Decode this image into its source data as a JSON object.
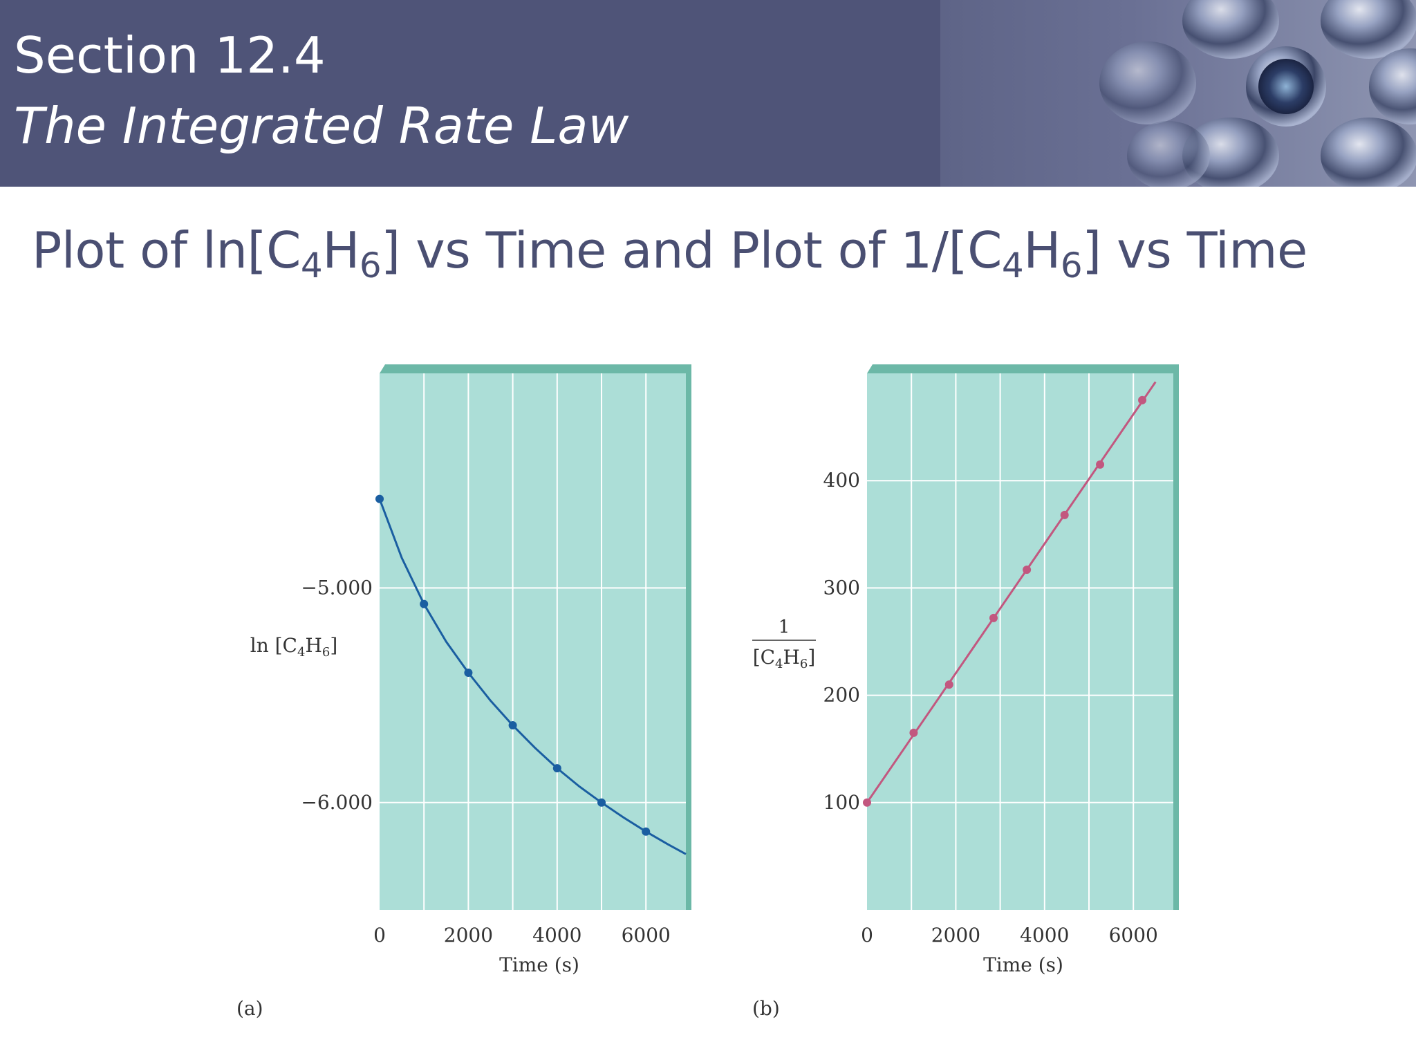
{
  "header": {
    "section_number": "Section 12.4",
    "section_name": "The Integrated Rate Law"
  },
  "slide_title_parts": {
    "p1": "Plot of ln[C",
    "s1": "4",
    "p2": "H",
    "s2": "6",
    "p3": "] vs Time and Plot of 1/[C",
    "s3": "4",
    "p4": "H",
    "s4": "6",
    "p5": "] vs Time"
  },
  "colors": {
    "header_bg": "#4f5478",
    "title_text": "#4a4f72",
    "plot_bg": "#acded7",
    "grid": "#ffffff",
    "series_a": "#1a5ea1",
    "series_b": "#c2577f"
  },
  "chart_data": [
    {
      "type": "line",
      "panel_label": "(a)",
      "xlabel": "Time (s)",
      "ylabel": "ln [C4H6]",
      "ylabel_parts": {
        "a": "ln [C",
        "b": "4",
        "c": "H",
        "d": "6",
        "e": "]"
      },
      "x_ticks": [
        0,
        2000,
        4000,
        6000
      ],
      "x_tick_labels": [
        "0",
        "2000",
        "4000",
        "6000"
      ],
      "y_ticks": [
        -5.0,
        -6.0
      ],
      "y_tick_labels": [
        "−5.000",
        "−6.000"
      ],
      "xlim": [
        0,
        6900
      ],
      "ylim": [
        -6.5,
        -4.0
      ],
      "grid": true,
      "series": [
        {
          "points": {
            "x": [
              0,
              1000,
              2000,
              3000,
              4000,
              5000,
              6000
            ],
            "y": [
              -4.585,
              -5.075,
              -5.395,
              -5.64,
              -5.84,
              -6.0,
              -6.135
            ]
          },
          "curve": {
            "x": [
              0,
              500,
              1000,
              1500,
              2000,
              2500,
              3000,
              3500,
              4000,
              4500,
              5000,
              5500,
              6000,
              6500,
              6900
            ],
            "y": [
              -4.585,
              -4.86,
              -5.075,
              -5.25,
              -5.395,
              -5.525,
              -5.64,
              -5.745,
              -5.84,
              -5.925,
              -6.0,
              -6.07,
              -6.135,
              -6.195,
              -6.24
            ]
          }
        }
      ]
    },
    {
      "type": "line",
      "panel_label": "(b)",
      "xlabel": "Time (s)",
      "ylabel": "1 / [C4H6]",
      "ylabel_parts": {
        "num": "1",
        "a": "[C",
        "b": "4",
        "c": "H",
        "d": "6",
        "e": "]"
      },
      "x_ticks": [
        0,
        2000,
        4000,
        6000
      ],
      "x_tick_labels": [
        "0",
        "2000",
        "4000",
        "6000"
      ],
      "y_ticks": [
        100,
        200,
        300,
        400
      ],
      "y_tick_labels": [
        "100",
        "200",
        "300",
        "400"
      ],
      "xlim": [
        0,
        6900
      ],
      "ylim": [
        0,
        500
      ],
      "grid": true,
      "series": [
        {
          "points": {
            "x": [
              0,
              1050,
              1850,
              2850,
              3600,
              4450,
              5250,
              6200
            ],
            "y": [
              100,
              165,
              210,
              272,
              317,
              368,
              415,
              475
            ]
          },
          "line": {
            "x": [
              0,
              6500
            ],
            "y": [
              100,
              492
            ]
          }
        }
      ]
    }
  ]
}
